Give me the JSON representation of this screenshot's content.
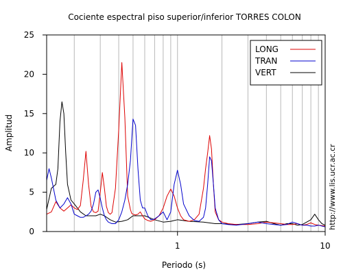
{
  "chart_data": {
    "type": "line",
    "title": "Cociente espectral piso superior/inferior  TORRES COLON",
    "xlabel": "Periodo (s)",
    "ylabel": "Amplitud",
    "xscale": "log",
    "xlim": [
      0.13,
      10
    ],
    "ylim": [
      0,
      25
    ],
    "x_ticks": [
      1,
      10
    ],
    "x_tick_labels": [
      "1",
      "10"
    ],
    "y_ticks": [
      0,
      5,
      10,
      15,
      20,
      25
    ],
    "y_tick_labels": [
      "0",
      "5",
      "10",
      "15",
      "20",
      "25"
    ],
    "grid": true,
    "legend_position": "top-right",
    "watermark": "http://www.lis.ucr.ac.cr",
    "series": [
      {
        "name": "LONG",
        "color": "#dd0000",
        "x": [
          0.13,
          0.14,
          0.15,
          0.16,
          0.17,
          0.18,
          0.19,
          0.2,
          0.21,
          0.22,
          0.23,
          0.24,
          0.25,
          0.26,
          0.27,
          0.28,
          0.29,
          0.3,
          0.31,
          0.32,
          0.33,
          0.34,
          0.35,
          0.36,
          0.38,
          0.4,
          0.42,
          0.44,
          0.46,
          0.48,
          0.49,
          0.5,
          0.52,
          0.54,
          0.56,
          0.58,
          0.6,
          0.63,
          0.66,
          0.7,
          0.75,
          0.8,
          0.85,
          0.9,
          0.95,
          1.0,
          1.05,
          1.1,
          1.2,
          1.3,
          1.4,
          1.5,
          1.55,
          1.6,
          1.65,
          1.7,
          1.75,
          1.8,
          1.9,
          2.0,
          2.2,
          2.5,
          3.0,
          3.5,
          4.0,
          4.5,
          5.0,
          5.5,
          6.0,
          6.5,
          7.0,
          7.5,
          8.0,
          8.5,
          9.0,
          10.0
        ],
        "values": [
          2.2,
          2.5,
          3.8,
          3.0,
          2.6,
          3.0,
          3.4,
          3.0,
          2.8,
          3.3,
          6.5,
          10.2,
          6.0,
          3.2,
          2.5,
          2.4,
          2.6,
          5.0,
          7.5,
          5.5,
          3.2,
          2.4,
          2.2,
          2.4,
          5.5,
          13.0,
          21.5,
          14.5,
          4.5,
          2.8,
          2.3,
          2.2,
          2.1,
          2.2,
          2.5,
          2.0,
          1.6,
          1.4,
          1.3,
          1.5,
          2.0,
          3.0,
          4.5,
          5.4,
          4.5,
          3.0,
          2.0,
          1.5,
          1.3,
          1.5,
          2.2,
          5.5,
          8.0,
          10.0,
          12.2,
          10.5,
          6.0,
          2.5,
          1.5,
          1.2,
          1.0,
          0.9,
          0.9,
          1.0,
          1.2,
          1.1,
          1.0,
          0.9,
          0.9,
          1.0,
          0.8,
          0.9,
          1.1,
          0.9,
          0.8,
          0.7
        ]
      },
      {
        "name": "TRAN",
        "color": "#0000cc",
        "x": [
          0.13,
          0.135,
          0.14,
          0.15,
          0.16,
          0.17,
          0.18,
          0.19,
          0.2,
          0.21,
          0.22,
          0.23,
          0.24,
          0.25,
          0.26,
          0.27,
          0.28,
          0.29,
          0.3,
          0.31,
          0.32,
          0.33,
          0.34,
          0.35,
          0.36,
          0.38,
          0.4,
          0.42,
          0.44,
          0.46,
          0.48,
          0.5,
          0.52,
          0.54,
          0.56,
          0.58,
          0.6,
          0.63,
          0.66,
          0.7,
          0.75,
          0.8,
          0.85,
          0.9,
          0.95,
          1.0,
          1.05,
          1.1,
          1.2,
          1.3,
          1.4,
          1.5,
          1.55,
          1.6,
          1.65,
          1.7,
          1.75,
          1.8,
          1.9,
          2.0,
          2.2,
          2.5,
          3.0,
          3.5,
          4.0,
          4.5,
          5.0,
          5.5,
          6.0,
          6.5,
          7.0,
          7.5,
          8.0,
          8.5,
          9.0,
          10.0
        ],
        "values": [
          6.5,
          8.0,
          6.8,
          4.0,
          3.0,
          3.5,
          4.3,
          3.5,
          2.2,
          2.0,
          1.8,
          1.8,
          2.0,
          2.2,
          2.6,
          3.5,
          5.0,
          5.3,
          4.2,
          3.0,
          2.0,
          1.5,
          1.2,
          1.1,
          1.0,
          1.0,
          1.5,
          2.5,
          4.0,
          6.0,
          9.0,
          14.3,
          13.5,
          8.0,
          4.0,
          3.0,
          3.0,
          2.0,
          1.5,
          1.6,
          2.0,
          2.5,
          1.5,
          2.5,
          6.0,
          7.8,
          6.0,
          3.5,
          2.0,
          1.4,
          1.3,
          1.8,
          3.0,
          6.0,
          9.5,
          9.0,
          6.0,
          3.0,
          1.5,
          1.0,
          0.9,
          0.8,
          1.0,
          1.2,
          1.0,
          0.9,
          0.8,
          0.9,
          1.2,
          1.0,
          0.8,
          0.8,
          0.7,
          0.7,
          0.8,
          0.6
        ]
      },
      {
        "name": "VERT",
        "color": "#000000",
        "x": [
          0.13,
          0.14,
          0.15,
          0.155,
          0.16,
          0.165,
          0.17,
          0.175,
          0.18,
          0.19,
          0.2,
          0.21,
          0.22,
          0.24,
          0.26,
          0.28,
          0.3,
          0.32,
          0.35,
          0.38,
          0.42,
          0.46,
          0.5,
          0.55,
          0.6,
          0.7,
          0.8,
          0.9,
          1.0,
          1.2,
          1.5,
          1.8,
          2.0,
          2.5,
          3.0,
          3.5,
          4.0,
          4.5,
          5.0,
          5.5,
          6.0,
          6.5,
          7.0,
          7.5,
          8.0,
          8.5,
          9.0,
          9.5,
          10.0
        ],
        "values": [
          2.8,
          5.5,
          6.0,
          8.0,
          14.0,
          16.5,
          15.0,
          10.0,
          6.0,
          4.0,
          3.5,
          3.0,
          2.5,
          2.0,
          2.0,
          2.0,
          2.2,
          2.0,
          1.5,
          1.2,
          1.3,
          1.5,
          2.0,
          2.0,
          2.0,
          1.5,
          1.2,
          1.3,
          1.5,
          1.3,
          1.2,
          1.0,
          1.0,
          0.9,
          1.0,
          1.2,
          1.3,
          1.0,
          0.8,
          1.0,
          1.0,
          0.8,
          0.9,
          1.2,
          1.5,
          2.2,
          1.5,
          1.0,
          0.8
        ]
      }
    ]
  }
}
